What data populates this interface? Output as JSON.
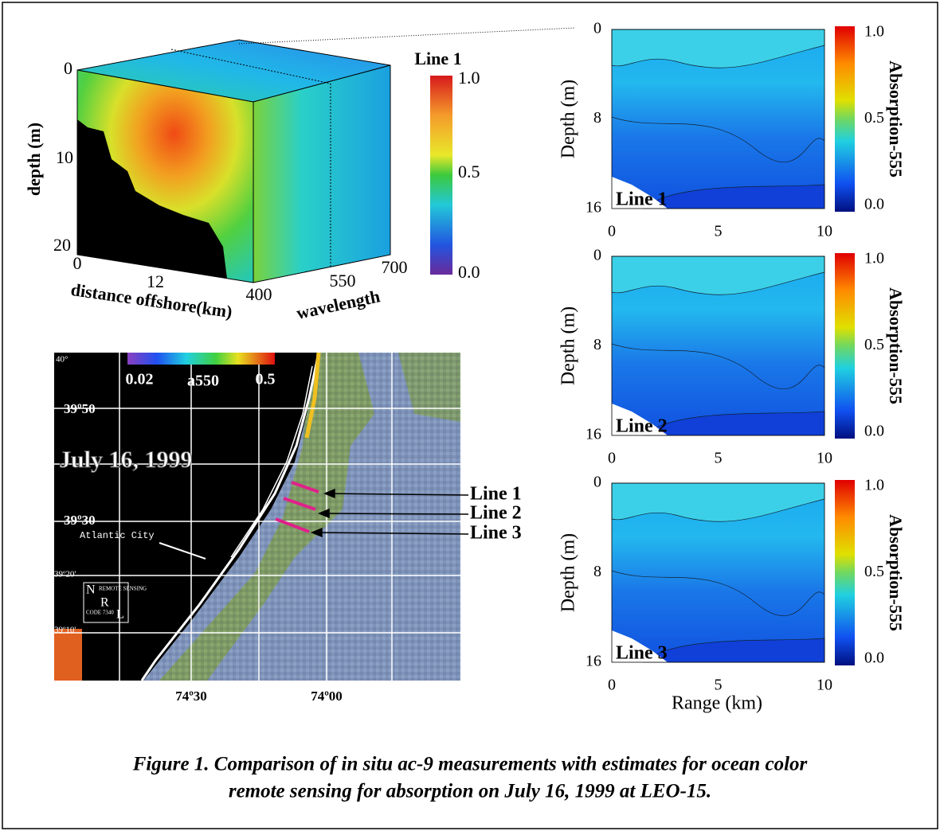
{
  "cube": {
    "ylabel": "depth (m)",
    "yticks": [
      "0",
      "10",
      "20"
    ],
    "xlabel": "distance offshore(km)",
    "xticks": [
      "0",
      "12"
    ],
    "wavelength_label": "wavelength",
    "wavelength_ticks": [
      "400",
      "550",
      "700"
    ],
    "colorbar_title": "Line 1",
    "colorbar_ticks": [
      "1.0",
      "0.5",
      "0.0"
    ]
  },
  "map": {
    "colorbar_ticks": [
      "0.02",
      "a550",
      "0.5"
    ],
    "date": "July 16, 1999",
    "city": "Atlantic City",
    "lat_labels": [
      "40°",
      "39º50",
      "39º30",
      "39º20'",
      "39º10'"
    ],
    "lon_labels": [
      "74º30",
      "74º00"
    ],
    "lines": [
      "Line 1",
      "Line 2",
      "Line 3"
    ],
    "logo": {
      "n": "N",
      "r": "R",
      "l": "L",
      "top": "REMOTE SENSING",
      "code": "CODE 7340"
    }
  },
  "profiles": [
    {
      "label": "Line 1",
      "ylabel": "Depth (m)",
      "yticks": [
        0,
        8,
        16
      ],
      "xticks": [
        0,
        5,
        10
      ],
      "colorbar_label": "Absorption-555",
      "colorbar_ticks": [
        "1.0",
        "0.5",
        "0.0"
      ]
    },
    {
      "label": "Line 2",
      "ylabel": "Depth (m)",
      "yticks": [
        0,
        8,
        16
      ],
      "xticks": [
        0,
        5,
        10
      ],
      "colorbar_label": "Absorption-555",
      "colorbar_ticks": [
        "1.0",
        "0.5",
        "0.0"
      ]
    },
    {
      "label": "Line 3",
      "ylabel": "Depth (m)",
      "yticks": [
        0,
        8,
        16
      ],
      "xticks": [
        0,
        5,
        10
      ],
      "colorbar_label": "Absorption-555",
      "colorbar_ticks": [
        "1.0",
        "0.5",
        "0.0"
      ]
    }
  ],
  "profiles_xlabel": "Range (km)",
  "caption": [
    "Figure 1. Comparison of in situ ac-9 measurements with estimates for ocean color",
    "remote sensing for absorption on July 16, 1999 at LEO-15."
  ]
}
